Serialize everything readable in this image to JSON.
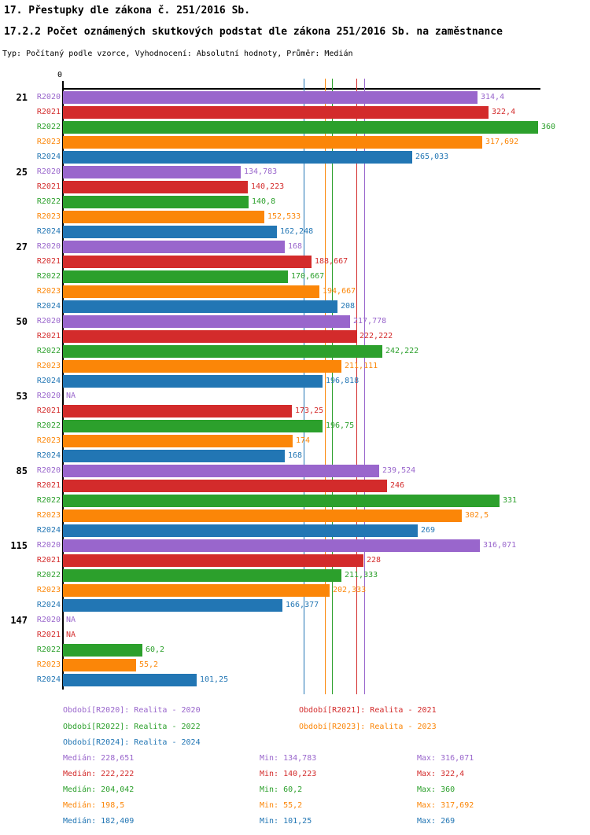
{
  "header": {
    "title_line1": "17. Přestupky dle zákona č. 251/2016 Sb.",
    "title_line2": "17.2.2 Počet oznámených skutkových podstat dle zákona 251/2016 Sb. na zaměstnance",
    "subtitle": "Typ: Počítaný podle vzorce, Vyhodnocení: Absolutní hodnoty, Průměr: Medián"
  },
  "chart_data": {
    "type": "bar",
    "orientation": "horizontal-grouped",
    "x_axis_zero_label": "0",
    "xlim": [
      0,
      362
    ],
    "grid": false,
    "na_label": "NA",
    "categories": [
      "21",
      "25",
      "27",
      "50",
      "53",
      "85",
      "115",
      "147"
    ],
    "series": [
      {
        "name": "R2020",
        "color": "#9966CC",
        "values": [
          "314,4",
          "134,783",
          "168",
          "217,778",
          "NA",
          "239,524",
          "316,071",
          "NA"
        ]
      },
      {
        "name": "R2021",
        "color": "#D32B2B",
        "values": [
          "322,4",
          "140,223",
          "188,667",
          "222,222",
          "173,25",
          "246",
          "228",
          "NA"
        ]
      },
      {
        "name": "R2022",
        "color": "#2CA02C",
        "values": [
          "360",
          "140,8",
          "170,667",
          "242,222",
          "196,75",
          "331",
          "211,333",
          "60,2"
        ]
      },
      {
        "name": "R2023",
        "color": "#FB8608",
        "values": [
          "317,692",
          "152,533",
          "194,667",
          "211,111",
          "174",
          "302,5",
          "202,333",
          "55,2"
        ]
      },
      {
        "name": "R2024",
        "color": "#2276B4",
        "values": [
          "265,033",
          "162,248",
          "208",
          "196,818",
          "168",
          "269",
          "166,377",
          "101,25"
        ]
      }
    ],
    "median_lines": [
      {
        "series": "R2020",
        "value": "228,651",
        "color": "#9966CC"
      },
      {
        "series": "R2021",
        "value": "222,222",
        "color": "#D32B2B"
      },
      {
        "series": "R2022",
        "value": "204,042",
        "color": "#2CA02C"
      },
      {
        "series": "R2023",
        "value": "198,5",
        "color": "#FB8608"
      },
      {
        "series": "R2024",
        "value": "182,409",
        "color": "#2276B4"
      }
    ]
  },
  "legend": {
    "items": [
      {
        "label": "Období[R2020]: Realita - 2020",
        "color": "#9966CC",
        "col": 0,
        "row": 0
      },
      {
        "label": "Období[R2021]: Realita - 2021",
        "color": "#D32B2B",
        "col": 1,
        "row": 0
      },
      {
        "label": "Období[R2022]: Realita - 2022",
        "color": "#2CA02C",
        "col": 0,
        "row": 1
      },
      {
        "label": "Období[R2023]: Realita - 2023",
        "color": "#FB8608",
        "col": 1,
        "row": 1
      },
      {
        "label": "Období[R2024]: Realita - 2024",
        "color": "#2276B4",
        "col": 0,
        "row": 2
      }
    ]
  },
  "stats": {
    "rows": [
      {
        "color": "#9966CC",
        "median": "Medián: 228,651",
        "min": "Min: 134,783",
        "max": "Max: 316,071"
      },
      {
        "color": "#D32B2B",
        "median": "Medián: 222,222",
        "min": "Min: 140,223",
        "max": "Max: 322,4"
      },
      {
        "color": "#2CA02C",
        "median": "Medián: 204,042",
        "min": "Min: 60,2",
        "max": "Max: 360"
      },
      {
        "color": "#FB8608",
        "median": "Medián: 198,5",
        "min": "Min: 55,2",
        "max": "Max: 317,692"
      },
      {
        "color": "#2276B4",
        "median": "Medián: 182,409",
        "min": "Min: 101,25",
        "max": "Max: 269"
      }
    ]
  }
}
